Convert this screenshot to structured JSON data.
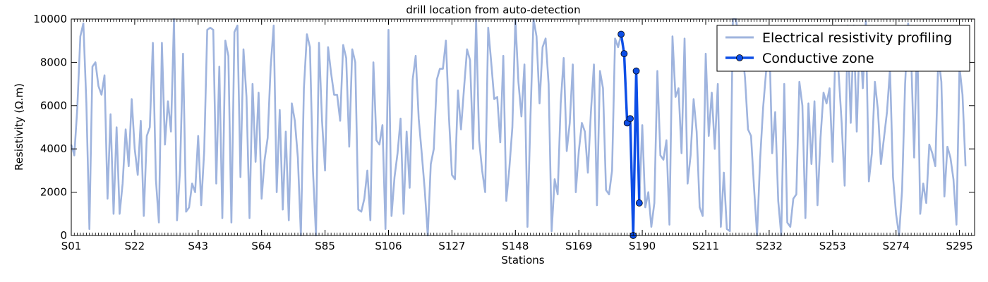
{
  "chart_data": {
    "type": "line",
    "title": "drill location from auto-detection",
    "xlabel": "Stations",
    "ylabel": "Resistivity (Ω.m)",
    "ylim": [
      0,
      10000
    ],
    "yticks": [
      0,
      2000,
      4000,
      6000,
      8000,
      10000
    ],
    "xtick_labels": [
      "S01",
      "S22",
      "S43",
      "S64",
      "S85",
      "S106",
      "S127",
      "S148",
      "S169",
      "S190",
      "S211",
      "S232",
      "S253",
      "S274",
      "S295"
    ],
    "xtick_stations": [
      1,
      22,
      43,
      64,
      85,
      106,
      127,
      148,
      169,
      190,
      211,
      232,
      253,
      274,
      295
    ],
    "x_range": [
      1,
      300
    ],
    "grid": false,
    "legend_position": "top-right",
    "colors": {
      "resistivity": "#9fb4de",
      "conductive": "#0d4ee6",
      "axis": "#000000"
    },
    "series": [
      {
        "name": "Electrical resistivity profiling",
        "x_start": 1,
        "values": [
          4200,
          3700,
          5900,
          9200,
          9800,
          6100,
          300,
          7800,
          8000,
          6900,
          6500,
          7400,
          1700,
          5600,
          1000,
          5000,
          1000,
          2400,
          4900,
          3200,
          6300,
          4000,
          2800,
          5300,
          900,
          4600,
          5000,
          8900,
          2600,
          600,
          8900,
          4200,
          6200,
          4800,
          10000,
          700,
          3000,
          8400,
          1100,
          1300,
          2400,
          2000,
          4600,
          1400,
          3900,
          9500,
          9600,
          9500,
          2400,
          7800,
          800,
          9000,
          8300,
          600,
          9400,
          9700,
          2700,
          8600,
          6400,
          800,
          7000,
          3400,
          6600,
          1700,
          3500,
          4500,
          7800,
          9700,
          2000,
          5800,
          1200,
          4800,
          700,
          6100,
          5300,
          3600,
          0,
          6800,
          9300,
          8700,
          3000,
          0,
          8900,
          5300,
          3000,
          8700,
          7500,
          6500,
          6500,
          5300,
          8800,
          8200,
          4100,
          8600,
          8000,
          1200,
          1100,
          1700,
          3000,
          700,
          8000,
          4400,
          4200,
          5100,
          300,
          9500,
          900,
          2700,
          3800,
          5400,
          1000,
          4800,
          2200,
          7200,
          8300,
          5400,
          3800,
          2100,
          0,
          3300,
          4000,
          7200,
          7700,
          7700,
          9000,
          5500,
          2800,
          2600,
          6700,
          4900,
          6800,
          8600,
          8100,
          4000,
          10000,
          4400,
          3000,
          2000,
          9600,
          8000,
          6300,
          6400,
          4300,
          8300,
          1600,
          3100,
          5000,
          10000,
          7100,
          5500,
          7900,
          400,
          5500,
          10000,
          9200,
          6100,
          8700,
          9100,
          7000,
          200,
          2600,
          1900,
          6100,
          8200,
          3900,
          5200,
          7900,
          2000,
          3900,
          5200,
          4800,
          2900,
          5700,
          7900,
          1400,
          7600,
          6800,
          2100,
          1900,
          3000,
          9100,
          8700,
          9300,
          8400,
          5200,
          5400,
          0,
          7600,
          1500,
          5100,
          1300,
          2000,
          400,
          1500,
          7600,
          3700,
          3500,
          4400,
          500,
          9200,
          6400,
          6800,
          3800,
          9100,
          2400,
          3700,
          6300,
          4800,
          1300,
          900,
          8400,
          4600,
          6600,
          4000,
          7000,
          400,
          2900,
          300,
          200,
          10000,
          10000,
          9000,
          8700,
          7300,
          4900,
          4600,
          2200,
          0,
          3500,
          5900,
          7600,
          9400,
          3800,
          5700,
          1600,
          0,
          7000,
          600,
          400,
          1700,
          1900,
          7100,
          6000,
          800,
          6100,
          3300,
          6200,
          1400,
          4500,
          6600,
          6100,
          6800,
          3400,
          9100,
          7500,
          5200,
          2300,
          9700,
          5200,
          9700,
          4800,
          9500,
          6800,
          9900,
          2500,
          3800,
          7100,
          5800,
          3300,
          4500,
          5700,
          7700,
          2700,
          1000,
          0,
          2100,
          7000,
          9800,
          8300,
          3600,
          9400,
          1000,
          2400,
          1500,
          4200,
          3800,
          3200,
          8300,
          7100,
          1800,
          4100,
          3600,
          2600,
          500,
          7800,
          6500,
          3200
        ]
      },
      {
        "name": "Conductive zone",
        "x": [
          183,
          184,
          185,
          186,
          187,
          188,
          189
        ],
        "values": [
          9300,
          8400,
          5200,
          5400,
          0,
          7600,
          1500
        ]
      }
    ]
  }
}
